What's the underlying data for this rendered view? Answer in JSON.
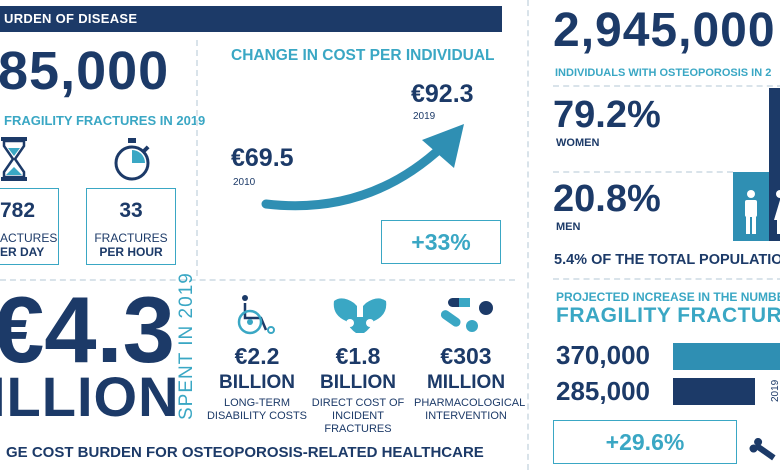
{
  "header": {
    "title": "URDEN OF DISEASE"
  },
  "left": {
    "big_number": "85,000",
    "subtitle": "FRAGILITY FRACTURES IN 2019",
    "stat1": {
      "value": "782",
      "line1": "ACTURES",
      "line2": "ER DAY",
      "icon": "hourglass-icon"
    },
    "stat2": {
      "value": "33",
      "line1": "FRACTURES",
      "line2": "PER HOUR",
      "icon": "stopwatch-icon"
    }
  },
  "cost_change": {
    "title": "CHANGE IN COST PER INDIVIDUAL",
    "start_value": "€69.5",
    "start_year": "2010",
    "end_value": "€92.3",
    "end_year": "2019",
    "change": "+33%"
  },
  "osteo": {
    "big_number": "2,945,000",
    "subtitle": "INDIVIDUALS WITH OSTEOPOROSIS IN 2",
    "women_pct": "79.2%",
    "women_label": "WOMEN",
    "men_pct": "20.8%",
    "men_label": "MEN",
    "population": "5.4% OF THE TOTAL POPULATIO"
  },
  "projection": {
    "title": "PROJECTED INCREASE IN THE NUMBER",
    "title2": "FRAGILITY FRACTUR",
    "v1": "370,000",
    "v2": "285,000",
    "year": "2019",
    "change": "+29.6%",
    "v1_ratio": 1.0,
    "v2_ratio": 0.77
  },
  "spend": {
    "amount": "€4.3",
    "unit": "ILLION",
    "year_label": "SPENT IN 2019",
    "footer": "GE COST BURDEN FOR OSTEOPOROSIS-RELATED HEALTHCARE",
    "items": [
      {
        "value": "€2.2",
        "unit": "BILLION",
        "desc": [
          "LONG-TERM",
          "DISABILITY COSTS"
        ],
        "icon": "wheelchair-icon"
      },
      {
        "value": "€1.8",
        "unit": "BILLION",
        "desc": [
          "DIRECT COST OF",
          "INCIDENT",
          "FRACTURES"
        ],
        "icon": "pelvis-icon"
      },
      {
        "value": "€303",
        "unit": "MILLION",
        "desc": [
          "PHARMACOLOGICAL",
          "INTERVENTION"
        ],
        "icon": "pills-icon"
      }
    ]
  }
}
